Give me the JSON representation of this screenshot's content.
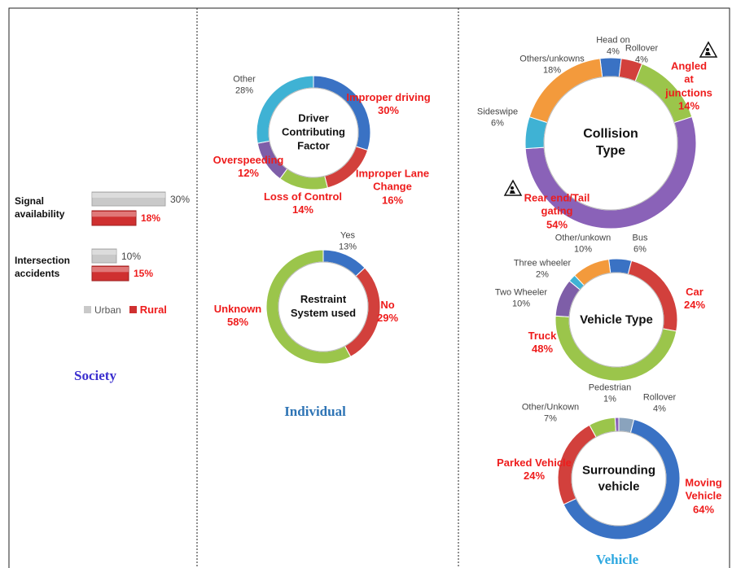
{
  "sections": [
    "Society",
    "Individual",
    "Vehicle"
  ],
  "chart_data": [
    {
      "type": "bar",
      "orientation": "horizontal",
      "categories": [
        "Signal availability",
        "Intersection accidents"
      ],
      "series": [
        {
          "name": "Urban",
          "color": "#c9c9c9",
          "values": [
            30,
            10
          ],
          "value_labels": [
            "30%",
            "10%"
          ]
        },
        {
          "name": "Rural",
          "color": "#cf3030",
          "values": [
            18,
            15
          ],
          "value_labels": [
            "18%",
            "15%"
          ]
        }
      ],
      "legend": "bottom"
    },
    {
      "type": "pie",
      "donut": true,
      "title": "Driver Contributing Factor",
      "categories": [
        "Improper driving",
        "Improper Lane Change",
        "Loss of Control",
        "Overspeeding",
        "Other"
      ],
      "values": [
        30,
        16,
        14,
        12,
        28
      ],
      "value_labels": [
        "30%",
        "16%",
        "14%",
        "12%",
        "28%"
      ],
      "colors": [
        "#3a72c4",
        "#d2403c",
        "#9bc54b",
        "#7e5ea8",
        "#3fb2d4"
      ],
      "label_colors": [
        "#ee1c1c",
        "#ee1c1c",
        "#ee1c1c",
        "#ee1c1c",
        "#444444"
      ]
    },
    {
      "type": "pie",
      "donut": true,
      "title": "Restraint System used",
      "categories": [
        "Yes",
        "No",
        "Unknown"
      ],
      "values": [
        13,
        29,
        58
      ],
      "value_labels": [
        "13%",
        "29%",
        "58%"
      ],
      "colors": [
        "#3a72c4",
        "#d2403c",
        "#9bc54b"
      ],
      "label_colors": [
        "#444444",
        "#ee1c1c",
        "#ee1c1c"
      ]
    },
    {
      "type": "pie",
      "donut": true,
      "title": "Collision Type",
      "categories": [
        "Head on",
        "Rollover",
        "Angled at junctions",
        "Rear end/Tail gating",
        "Sideswipe",
        "Others/unkowns"
      ],
      "values": [
        4,
        4,
        14,
        54,
        6,
        18
      ],
      "value_labels": [
        "4%",
        "4%",
        "14%",
        "54%",
        "6%",
        "18%"
      ],
      "colors": [
        "#3a72c4",
        "#d2403c",
        "#9bc54b",
        "#8a62b8",
        "#3fb2d4",
        "#f39a3c"
      ],
      "label_colors": [
        "#444444",
        "#444444",
        "#ee1c1c",
        "#ee1c1c",
        "#444444",
        "#444444"
      ]
    },
    {
      "type": "pie",
      "donut": true,
      "title": "Vehicle Type",
      "categories": [
        "Bus",
        "Car",
        "Truck",
        "Two Wheeler",
        "Three wheeler",
        "Other/unkown"
      ],
      "values": [
        6,
        24,
        48,
        10,
        2,
        10
      ],
      "value_labels": [
        "6%",
        "24%",
        "48%",
        "10%",
        "2%",
        "10%"
      ],
      "colors": [
        "#3a72c4",
        "#d2403c",
        "#9bc54b",
        "#7e5ea8",
        "#3fb2d4",
        "#f39a3c"
      ],
      "label_colors": [
        "#444444",
        "#ee1c1c",
        "#ee1c1c",
        "#444444",
        "#444444",
        "#444444"
      ]
    },
    {
      "type": "pie",
      "donut": true,
      "title": "Surrounding vehicle",
      "categories": [
        "Rollover",
        "Moving Vehicle",
        "Parked Vehicle",
        "Other/Unkown",
        "Pedestrian"
      ],
      "values": [
        4,
        64,
        24,
        7,
        1
      ],
      "value_labels": [
        "4%",
        "64%",
        "24%",
        "7%",
        "1%"
      ],
      "colors": [
        "#8aa3bd",
        "#3a72c4",
        "#d2403c",
        "#9bc54b",
        "#8a62b8"
      ],
      "label_colors": [
        "#444444",
        "#ee1c1c",
        "#ee1c1c",
        "#444444",
        "#444444"
      ]
    }
  ]
}
